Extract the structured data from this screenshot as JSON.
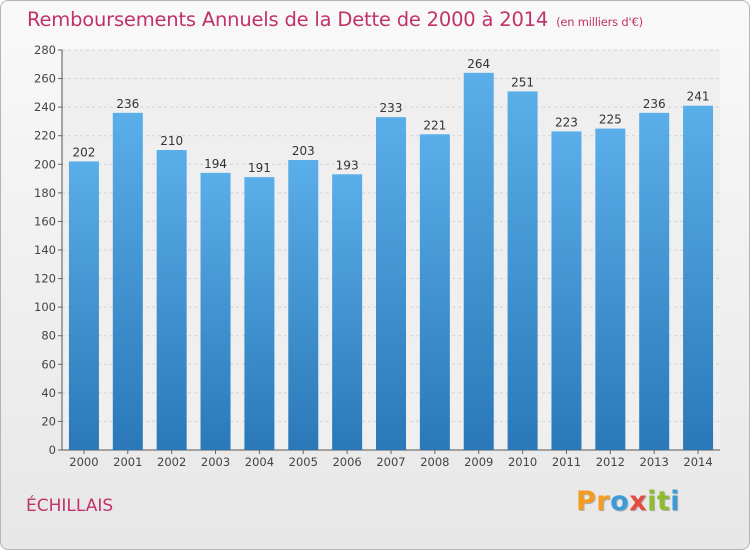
{
  "chart_data": {
    "type": "bar",
    "title": "Remboursements Annuels de la Dette de 2000 à 2014",
    "subtitle": "(en milliers d'€)",
    "categories": [
      "2000",
      "2001",
      "2002",
      "2003",
      "2004",
      "2005",
      "2006",
      "2007",
      "2008",
      "2009",
      "2010",
      "2011",
      "2012",
      "2013",
      "2014"
    ],
    "values": [
      202,
      236,
      210,
      194,
      191,
      203,
      193,
      233,
      221,
      264,
      251,
      223,
      225,
      236,
      241
    ],
    "ylim": [
      0,
      280
    ],
    "yticks": [
      0,
      20,
      40,
      60,
      80,
      100,
      120,
      140,
      160,
      180,
      200,
      220,
      240,
      260,
      280
    ],
    "xlabel": "",
    "ylabel": "",
    "grid": true,
    "bar_color_top": "#5aaee9",
    "bar_color_bottom": "#2a78b8"
  },
  "place_name": "ÉCHILLAIS",
  "logo": {
    "letters": [
      "P",
      "r",
      "o",
      "x",
      "i",
      "t",
      "i"
    ],
    "colors": [
      "#f39c1f",
      "#f39c1f",
      "#3d9ad8",
      "#e74c3c",
      "#8bbd2e",
      "#8bbd2e",
      "#3d9ad8"
    ]
  }
}
